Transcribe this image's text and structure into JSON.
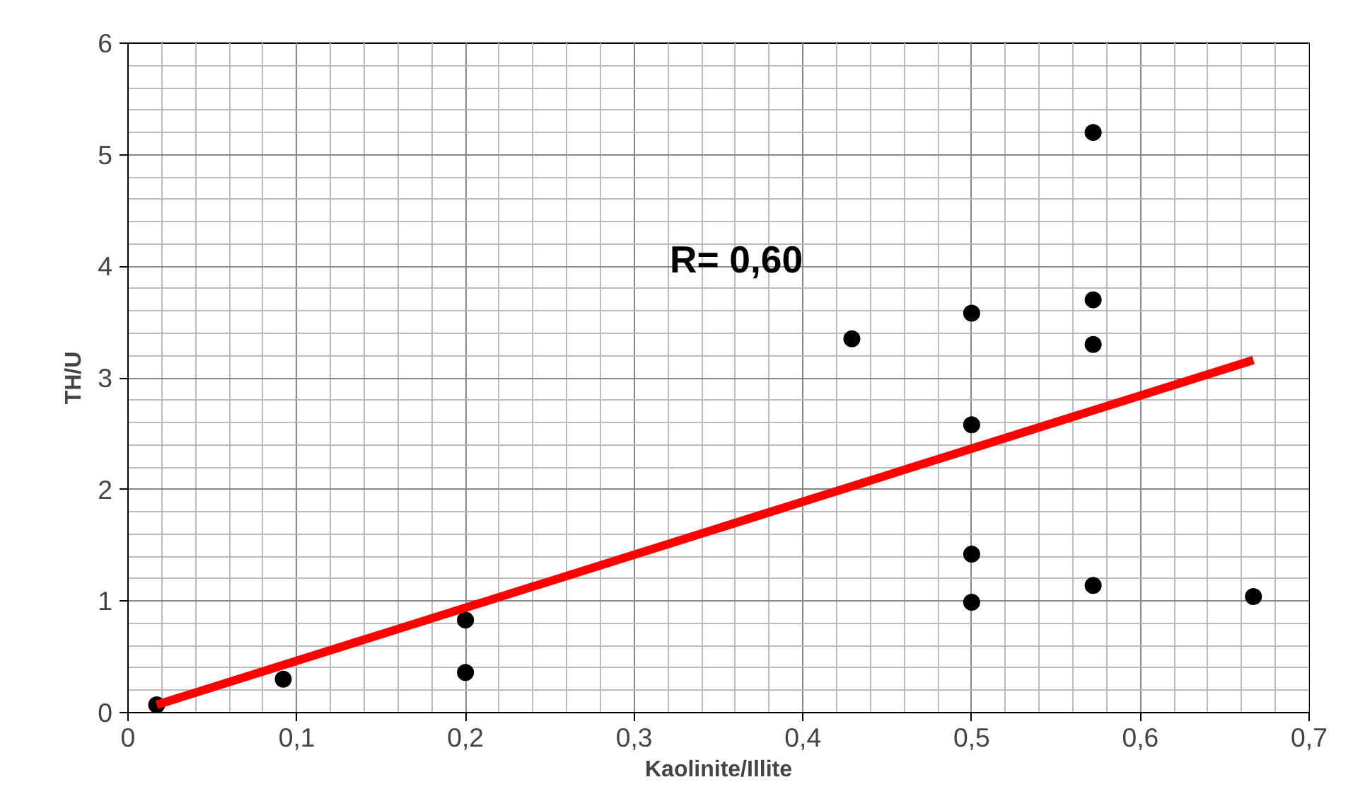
{
  "chart_data": {
    "type": "scatter",
    "xlabel": "Kaolinite/Illite",
    "ylabel": "TH/U",
    "grid": true,
    "xlim": [
      0,
      0.7
    ],
    "ylim": [
      0,
      6
    ],
    "xticks": [
      0,
      {
        "value": 0.1,
        "label": "0,1"
      },
      {
        "value": 0.2,
        "label": "0,2"
      },
      {
        "value": 0.3,
        "label": "0,3"
      },
      {
        "value": 0.4,
        "label": "0,4"
      },
      {
        "value": 0.5,
        "label": "0,5"
      },
      {
        "value": 0.6,
        "label": "0,6"
      },
      {
        "value": 0.7,
        "label": "0,7"
      }
    ],
    "yticks": [
      0,
      1,
      2,
      3,
      4,
      5,
      6
    ],
    "series": [
      {
        "color": "#000000",
        "marker": "circle",
        "x": [
          0.017,
          0.092,
          0.2,
          0.2,
          0.429,
          0.5,
          0.5,
          0.5,
          0.5,
          0.572,
          0.572,
          0.572,
          0.572,
          0.667
        ],
        "values": [
          0.07,
          0.3,
          0.83,
          0.36,
          3.35,
          3.58,
          2.58,
          1.42,
          0.99,
          5.2,
          3.7,
          3.3,
          1.14,
          1.04
        ]
      },
      {
        "type": "line",
        "marker": "none",
        "color": "#ff0000",
        "x": [
          0.017,
          0.667
        ],
        "values": [
          0.07,
          3.16
        ]
      }
    ],
    "annotations": [
      "R= 0,60"
    ]
  }
}
